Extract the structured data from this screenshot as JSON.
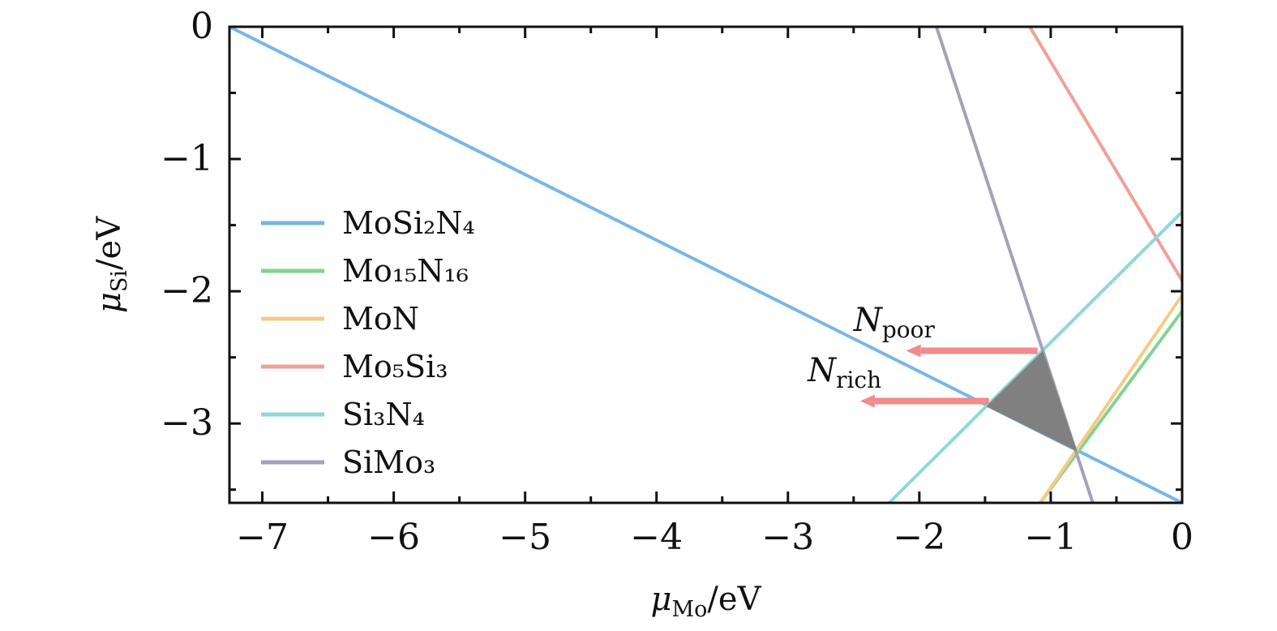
{
  "chart_data": {
    "type": "line",
    "xlabel": {
      "main": "μ",
      "sub": "Mo",
      "unit": "/eV"
    },
    "ylabel": {
      "main": "μ",
      "sub": "Si",
      "unit": "/eV"
    },
    "xlim": [
      -7.25,
      0
    ],
    "ylim": [
      -3.6,
      0
    ],
    "x_ticks": [
      -7,
      -6,
      -5,
      -4,
      -3,
      -2,
      -1,
      0
    ],
    "x_tick_labels": [
      "−7",
      "−6",
      "−5",
      "−4",
      "−3",
      "−2",
      "−1",
      "0"
    ],
    "y_ticks": [
      0,
      -1,
      -2,
      -3
    ],
    "y_tick_labels": [
      "0",
      "−1",
      "−2",
      "−3"
    ],
    "x_minor_step": 0.5,
    "y_minor_step": 0.5,
    "grid": false,
    "legend_position": "center-left",
    "series": [
      {
        "name": "MoSi₂N₄",
        "color": "#7ab6e6",
        "points": [
          [
            -7.25,
            0
          ],
          [
            0,
            -3.6
          ]
        ]
      },
      {
        "name": "Mo₁₅N₁₆",
        "color": "#82d392",
        "points": [
          [
            -1.08,
            -3.6
          ],
          [
            0,
            -2.15
          ]
        ]
      },
      {
        "name": "MoN",
        "color": "#f2cc86",
        "points": [
          [
            -1.08,
            -3.6
          ],
          [
            0,
            -2.03
          ]
        ]
      },
      {
        "name": "Mo₅Si₃",
        "color": "#f0a09a",
        "points": [
          [
            -1.16,
            0
          ],
          [
            0,
            -1.92
          ]
        ]
      },
      {
        "name": "Si₃N₄",
        "color": "#8ed8d6",
        "points": [
          [
            -2.23,
            -3.6
          ],
          [
            0,
            -1.4
          ]
        ]
      },
      {
        "name": "SiMo₃",
        "color": "#a2a2b8",
        "points": [
          [
            -1.87,
            0
          ],
          [
            -0.68,
            -3.6
          ]
        ]
      }
    ],
    "stable_region": {
      "color": "#808080",
      "points": [
        [
          -1.49,
          -2.87
        ],
        [
          -1.06,
          -2.45
        ],
        [
          -0.8,
          -3.21
        ]
      ]
    },
    "annotations": [
      {
        "main": "N",
        "sub": "poor",
        "color": "#f28b8b",
        "arrow_from": [
          -1.1,
          -2.45
        ],
        "arrow_to": [
          -2.1,
          -2.45
        ],
        "label_at": [
          -2.5,
          -2.3
        ]
      },
      {
        "main": "N",
        "sub": "rich",
        "color": "#f28b8b",
        "arrow_from": [
          -1.47,
          -2.83
        ],
        "arrow_to": [
          -2.45,
          -2.83
        ],
        "label_at": [
          -2.85,
          -2.68
        ]
      }
    ]
  }
}
